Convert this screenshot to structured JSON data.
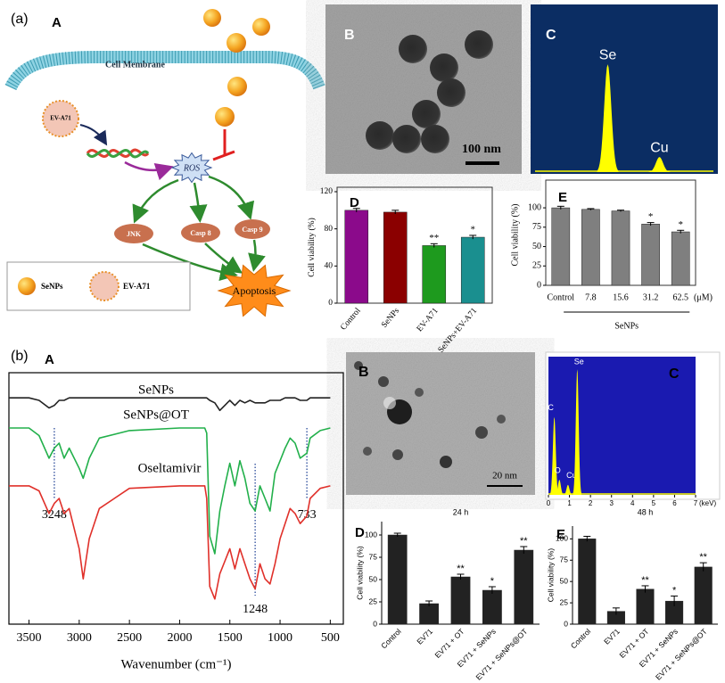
{
  "panels": {
    "a": "(a)",
    "aA": "A",
    "aB": "B",
    "aC": "C",
    "b": "(b)",
    "bA": "A",
    "bB": "B",
    "bC": "C"
  },
  "diagram": {
    "membrane": "Cell Membrane",
    "virus": "EV-A71",
    "ros": "ROS",
    "jnk": "JNK",
    "casp8": "Casp 8",
    "casp9": "Casp 9",
    "apoptosis": "Apoptosis",
    "legend": [
      "SeNPs",
      "EV-A71"
    ]
  },
  "scale_bars": {
    "a": "100 nm",
    "b": "20 nm"
  },
  "chart_data": [
    {
      "type": "bar",
      "label": "D",
      "ylabel": "Cell viability (%)",
      "categories": [
        "Control",
        "SeNPs",
        "EV-A71",
        "SeNPs+EV-A71"
      ],
      "values": [
        100,
        98,
        62,
        71
      ],
      "errors": [
        2,
        2,
        2,
        2
      ],
      "annotations": [
        null,
        null,
        "**",
        "*"
      ],
      "colors": [
        "#8b0a8b",
        "#8b0000",
        "#1e9a1e",
        "#1a8f8f"
      ],
      "ylim": [
        0,
        120
      ],
      "yticks": [
        0,
        40,
        80,
        120
      ]
    },
    {
      "type": "bar",
      "label": "E",
      "ylabel": "Cell viability (%)",
      "categories": [
        "Control",
        "7.8",
        "15.6",
        "31.2",
        "62.5"
      ],
      "unit": "(μM)",
      "group_label": "SeNPs",
      "values": [
        100,
        98,
        96,
        79,
        69
      ],
      "errors": [
        2,
        1,
        1,
        2,
        2
      ],
      "annotations": [
        null,
        null,
        null,
        "*",
        "*"
      ],
      "color": "#7f7f7f",
      "ylim": [
        0,
        130
      ],
      "yticks": [
        0,
        25,
        50,
        75,
        100
      ]
    },
    {
      "type": "spectrum",
      "peaks": [
        {
          "label": "Se",
          "x": 1.37,
          "value": 100
        },
        {
          "label": "Cu",
          "x": 8.04,
          "value": 14
        }
      ],
      "color": "#ffff00",
      "xlim": [
        -8,
        15
      ],
      "ylim": [
        0,
        110
      ]
    },
    {
      "type": "line",
      "xlabel": "Wavenumber (cm⁻¹)",
      "x": [
        3700,
        3500,
        3400,
        3300,
        3248,
        3200,
        3150,
        3100,
        3000,
        2960,
        2900,
        2800,
        2500,
        2000,
        1750,
        1730,
        1700,
        1650,
        1600,
        1550,
        1500,
        1450,
        1400,
        1350,
        1300,
        1248,
        1200,
        1150,
        1100,
        1050,
        1000,
        950,
        900,
        850,
        800,
        733,
        700,
        600,
        500
      ],
      "series": [
        {
          "name": "SeNPs",
          "color": "#222222",
          "values": [
            90,
            90,
            89,
            86,
            87,
            89,
            89,
            90,
            90,
            90,
            90,
            90,
            90,
            90,
            90,
            90,
            89,
            88,
            85,
            87,
            89,
            87,
            89,
            88,
            89,
            88,
            88,
            88,
            89,
            89,
            89,
            90,
            90,
            90,
            89,
            89,
            90,
            90,
            90
          ]
        },
        {
          "name": "SeNPs@OT",
          "color": "#22b04b",
          "values": [
            78,
            78,
            75,
            66,
            70,
            72,
            66,
            70,
            62,
            58,
            66,
            74,
            77,
            78,
            78,
            76,
            35,
            28,
            45,
            55,
            64,
            55,
            65,
            58,
            48,
            45,
            55,
            50,
            45,
            60,
            65,
            70,
            74,
            72,
            66,
            68,
            74,
            77,
            78
          ]
        },
        {
          "name": "Oseltamivir",
          "color": "#e0302a",
          "values": [
            55,
            55,
            53,
            44,
            48,
            50,
            44,
            46,
            30,
            18,
            34,
            46,
            54,
            55,
            55,
            50,
            15,
            10,
            20,
            25,
            30,
            22,
            30,
            24,
            18,
            14,
            24,
            18,
            16,
            24,
            34,
            40,
            46,
            44,
            40,
            43,
            50,
            54,
            55
          ]
        }
      ],
      "xlim": [
        3700,
        370
      ],
      "xticks": [
        3500,
        3000,
        2500,
        2000,
        1500,
        1000,
        500
      ],
      "ylim": [
        0,
        100
      ],
      "peak_labels": [
        3248,
        1248,
        733
      ]
    },
    {
      "type": "spectrum",
      "xlabel": "(keV)",
      "peaks": [
        {
          "label": "C",
          "x": 0.28,
          "value": 62
        },
        {
          "label": "O",
          "x": 0.52,
          "value": 12
        },
        {
          "label": "Cu",
          "x": 0.93,
          "value": 8
        },
        {
          "label": "Se",
          "x": 1.37,
          "value": 100
        }
      ],
      "color": "#ffff00",
      "xlim": [
        0,
        7
      ],
      "xticks": [
        0,
        1,
        2,
        3,
        4,
        5,
        6,
        7
      ],
      "ylim": [
        0,
        110
      ]
    },
    {
      "type": "bar",
      "label": "D",
      "title": "24 h",
      "ylabel": "Cell viability (%)",
      "categories": [
        "Control",
        "EV71",
        "EV71 + OT",
        "EV71 + SeNPs",
        "EV71 + SeNPs@OT"
      ],
      "values": [
        100,
        23,
        53,
        38,
        83
      ],
      "errors": [
        2,
        3,
        3,
        4,
        4
      ],
      "annotations": [
        null,
        null,
        "**",
        "*",
        "**"
      ],
      "color": "#222222",
      "ylim": [
        0,
        115
      ],
      "yticks": [
        0,
        25,
        50,
        75,
        100
      ]
    },
    {
      "type": "bar",
      "label": "E",
      "title": "48 h",
      "ylabel": "Cell viability (%)",
      "categories": [
        "Control",
        "EV71",
        "EV71 + OT",
        "EV71 + SeNPs",
        "EV71 + SeNPs@OT"
      ],
      "values": [
        100,
        15,
        41,
        27,
        67
      ],
      "errors": [
        3,
        4,
        4,
        6,
        5
      ],
      "annotations": [
        null,
        null,
        "**",
        "*",
        "**"
      ],
      "color": "#222222",
      "ylim": [
        0,
        115
      ],
      "yticks": [
        0,
        25,
        50,
        75,
        100
      ]
    }
  ]
}
